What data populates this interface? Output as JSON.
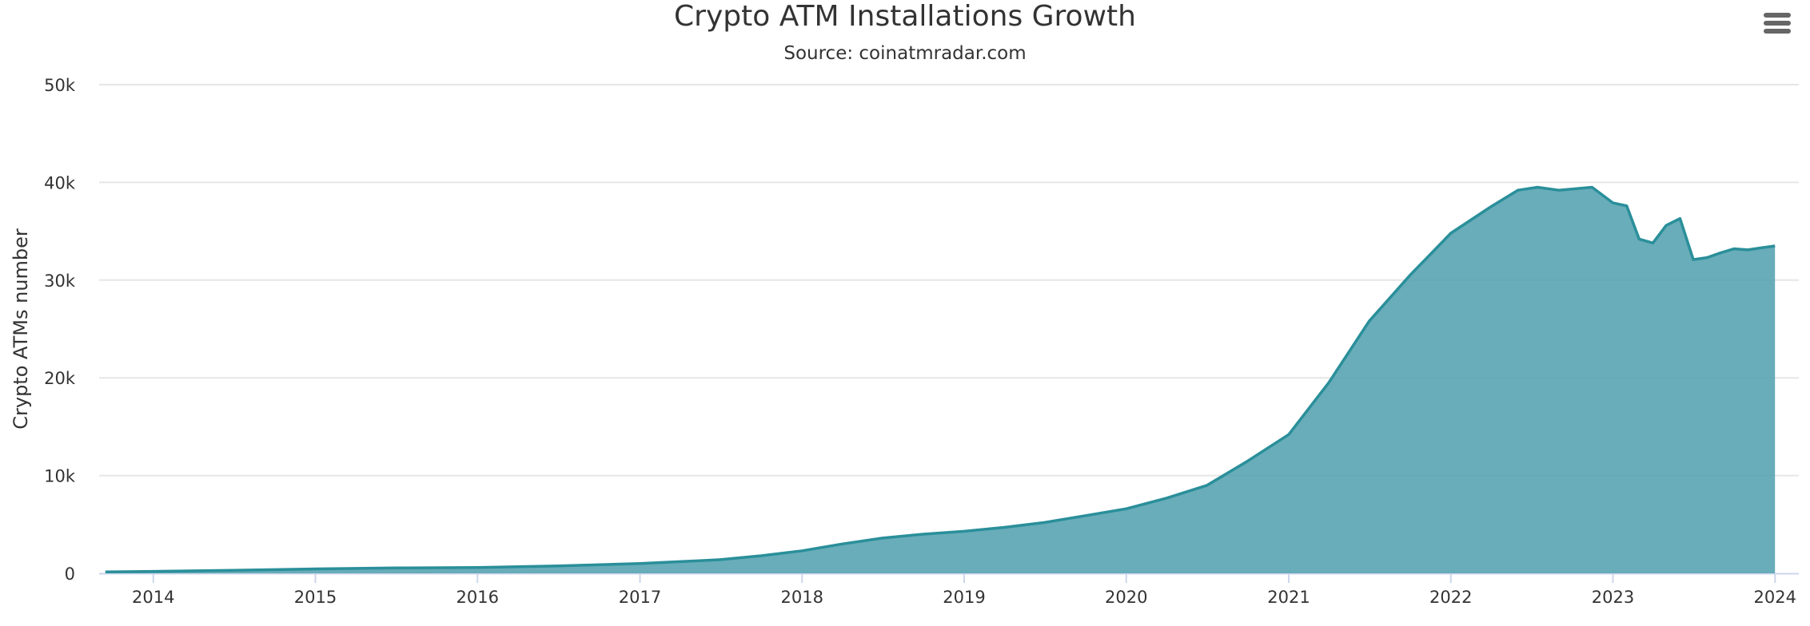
{
  "menu_icon": "hamburger-menu-icon",
  "colors": {
    "area_fill": "#4e9fad",
    "area_line": "#2a8f9a",
    "grid": "#e6e6e6",
    "axis": "#ccd6eb"
  },
  "chart_data": {
    "type": "area",
    "title": "Crypto ATM Installations Growth",
    "subtitle": "Source: coinatmradar.com",
    "xlabel": "",
    "ylabel": "Crypto ATMs number",
    "x_tick_labels": [
      "2014",
      "2015",
      "2016",
      "2017",
      "2018",
      "2019",
      "2020",
      "2021",
      "2022",
      "2023",
      "2024"
    ],
    "y_tick_labels": [
      "0",
      "10k",
      "20k",
      "30k",
      "40k",
      "50k"
    ],
    "ylim": [
      0,
      50000
    ],
    "xlim": [
      "2013-09-01",
      "2024-01-15"
    ],
    "grid": true,
    "legend": false,
    "x": [
      "2013-09-15",
      "2014-01-01",
      "2014-07-01",
      "2015-01-01",
      "2015-07-01",
      "2016-01-01",
      "2016-07-01",
      "2017-01-01",
      "2017-07-01",
      "2017-10-01",
      "2018-01-01",
      "2018-04-01",
      "2018-07-01",
      "2018-10-01",
      "2019-01-01",
      "2019-04-01",
      "2019-07-01",
      "2019-10-01",
      "2020-01-01",
      "2020-04-01",
      "2020-07-01",
      "2020-10-01",
      "2021-01-01",
      "2021-04-01",
      "2021-07-01",
      "2021-10-01",
      "2022-01-01",
      "2022-04-01",
      "2022-06-01",
      "2022-07-15",
      "2022-09-01",
      "2022-11-15",
      "2023-01-01",
      "2023-02-01",
      "2023-03-01",
      "2023-04-01",
      "2023-05-01",
      "2023-06-01",
      "2023-07-01",
      "2023-08-01",
      "2023-09-01",
      "2023-10-01",
      "2023-11-01",
      "2023-12-01",
      "2024-01-01"
    ],
    "series": [
      {
        "values": [
          150,
          200,
          300,
          450,
          550,
          600,
          750,
          1000,
          1400,
          1800,
          2300,
          3000,
          3600,
          4000,
          4300,
          4700,
          5200,
          5900,
          6600,
          7700,
          9000,
          11500,
          14200,
          19500,
          25800,
          30500,
          34800,
          37500,
          39200,
          39500,
          39200,
          39500,
          37900,
          37600,
          34200,
          33800,
          35600,
          36300,
          32100,
          32300,
          32800,
          33200,
          33100,
          33300,
          33500
        ]
      }
    ]
  }
}
